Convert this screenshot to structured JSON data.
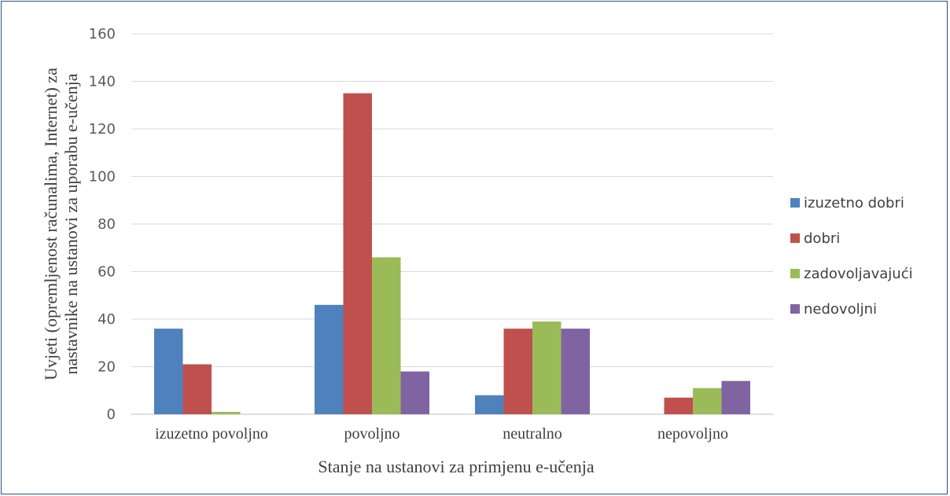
{
  "chart_data": {
    "type": "bar",
    "categories": [
      "izuzetno povoljno",
      "povoljno",
      "neutralno",
      "nepovoljno"
    ],
    "series": [
      {
        "name": "izuzetno dobri",
        "color": "#4f81bd",
        "values": [
          36,
          46,
          8,
          0
        ]
      },
      {
        "name": "dobri",
        "color": "#c0504d",
        "values": [
          21,
          135,
          36,
          7
        ]
      },
      {
        "name": "zadovoljavajući",
        "color": "#9bbb59",
        "values": [
          1,
          66,
          39,
          11
        ]
      },
      {
        "name": "nedovoljni",
        "color": "#8064a2",
        "values": [
          0,
          18,
          36,
          14
        ]
      }
    ],
    "yticks": [
      "0",
      "20",
      "40",
      "60",
      "80",
      "100",
      "120",
      "140",
      "160"
    ],
    "ylim": [
      0,
      160
    ],
    "xlabel": "Stanje na ustanovi za primjenu e-učenja",
    "ylabel_line1": "Uvjeti (opremljenost računalima, Internet) za",
    "ylabel_line2": "nastavnike na ustanovi za uporabu e-učenja",
    "grid": true,
    "legend_position": "right"
  }
}
